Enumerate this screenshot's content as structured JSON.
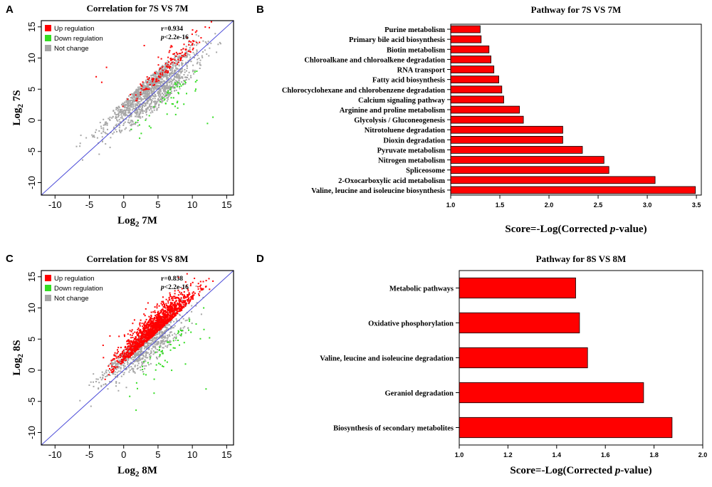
{
  "figure": {
    "panels": [
      "A",
      "B",
      "C",
      "D"
    ]
  },
  "chart_data": [
    {
      "id": "A",
      "type": "scatter",
      "title": "Correlation for 7S VS 7M",
      "xlabel_base": "Log",
      "xlabel_sub": "2",
      "xlabel_var": "7M",
      "ylabel_base": "Log",
      "ylabel_sub": "2",
      "ylabel_var": "7S",
      "xlim": [
        -12,
        16
      ],
      "ylim": [
        -12,
        16
      ],
      "xticks": [
        "-10",
        "-5",
        "0",
        "5",
        "10",
        "15"
      ],
      "xtick_values": [
        -10,
        -5,
        0,
        5,
        10,
        15
      ],
      "yticks": [
        "-10",
        "-5",
        "0",
        "5",
        "10",
        "15"
      ],
      "ytick_values": [
        -10,
        -5,
        0,
        5,
        10,
        15
      ],
      "r_text": "r=0.934",
      "p_text": "p<2.2e-16",
      "p_italic": "p",
      "p_rest": "<2.2e-16",
      "legend": [
        {
          "label": "Up regulation",
          "color": "#ff0000"
        },
        {
          "label": "Down regulation",
          "color": "#33dd22"
        },
        {
          "label": "Not change",
          "color": "#a6a6a6"
        }
      ],
      "diagonal": "y = x",
      "counts": {
        "not_change": 1400,
        "up": 140,
        "down": 55
      },
      "scatter_model": {
        "center": [
          4,
          5
        ],
        "sd_major": 4.3,
        "sd_minor": 1.5,
        "up_offset": [
          1.2,
          6
        ],
        "down_offset": [
          1.2,
          6
        ]
      },
      "seed": 7,
      "outliers": {
        "up": [
          [
            -4,
            7
          ],
          [
            -3.2,
            6.1
          ],
          [
            3,
            12
          ],
          [
            -2.5,
            8.5
          ]
        ],
        "down": [
          [
            13,
            0.5
          ],
          [
            12.2,
            -0.5
          ],
          [
            10.5,
            5
          ]
        ]
      }
    },
    {
      "id": "B",
      "type": "bar",
      "orientation": "horizontal",
      "title": "Pathway for 7S VS 7M",
      "xlabel_pre": "Score=-Log(Corrected ",
      "xlabel_italic": "p",
      "xlabel_post": "-value)",
      "xlim": [
        1.0,
        3.55
      ],
      "xticks": [
        "1.0",
        "1.5",
        "2.0",
        "2.5",
        "3.0",
        "3.5"
      ],
      "xtick_values": [
        1.0,
        1.5,
        2.0,
        2.5,
        3.0,
        3.5
      ],
      "bar_color": "#ff0000",
      "categories": [
        "Purine metabolism",
        "Primary bile acid biosynthesis",
        "Biotin metabolism",
        "Chloroalkane and chloroalkene degradation",
        "RNA transport",
        "Fatty acid biosynthesis",
        "Chlorocyclohexane and chlorobenzene degradation",
        "Calcium signaling pathway",
        "Arginine and proline metabolism",
        "Glycolysis / Gluconeogenesis",
        "Nitrotoluene degradation",
        "Dioxin degradation",
        "Pyruvate metabolism",
        "Nitrogen metabolism",
        "Spliceosome",
        "2-Oxocarboxylic acid metabolism",
        "Valine, leucine and isoleucine biosynthesis"
      ],
      "values": [
        1.3,
        1.31,
        1.39,
        1.41,
        1.44,
        1.49,
        1.52,
        1.54,
        1.7,
        1.74,
        2.14,
        2.14,
        2.34,
        2.56,
        2.61,
        3.08,
        3.49
      ]
    },
    {
      "id": "C",
      "type": "scatter",
      "title": "Correlation for 8S VS 8M",
      "xlabel_base": "Log",
      "xlabel_sub": "2",
      "xlabel_var": "8M",
      "ylabel_base": "Log",
      "ylabel_sub": "2",
      "ylabel_var": "8S",
      "xlim": [
        -12,
        16
      ],
      "ylim": [
        -12,
        16
      ],
      "xticks": [
        "-10",
        "-5",
        "0",
        "5",
        "10",
        "15"
      ],
      "xtick_values": [
        -10,
        -5,
        0,
        5,
        10,
        15
      ],
      "yticks": [
        "-10",
        "-5",
        "0",
        "5",
        "10",
        "15"
      ],
      "ytick_values": [
        -10,
        -5,
        0,
        5,
        10,
        15
      ],
      "r_text": "r=0.858",
      "p_text": "p<2.2e-16",
      "p_italic": "p",
      "p_rest": "<2.2e-16",
      "legend": [
        {
          "label": "Up regulation",
          "color": "#ff0000"
        },
        {
          "label": "Down regulation",
          "color": "#33dd22"
        },
        {
          "label": "Not change",
          "color": "#a6a6a6"
        }
      ],
      "diagonal": "y = x",
      "counts": {
        "not_change": 1100,
        "up": 1500,
        "down": 60
      },
      "scatter_model": {
        "center": [
          3,
          4.5
        ],
        "sd_major": 3.6,
        "sd_minor": 1.4,
        "up_offset": [
          0.6,
          5
        ],
        "down_offset": [
          0.6,
          5
        ]
      },
      "seed": 8,
      "outliers": {
        "up": [
          [
            -2,
            5.5
          ],
          [
            -3,
            4
          ],
          [
            11,
            12
          ],
          [
            12.5,
            13
          ]
        ],
        "down": [
          [
            12,
            -3
          ],
          [
            12.5,
            5.2
          ],
          [
            9,
            1
          ]
        ]
      }
    },
    {
      "id": "D",
      "type": "bar",
      "orientation": "horizontal",
      "title": "Pathway for 8S VS 8M",
      "xlabel_pre": "Score=-Log(Corrected ",
      "xlabel_italic": "p",
      "xlabel_post": "-value)",
      "xlim": [
        1.0,
        2.0
      ],
      "xticks": [
        "1.0",
        "1.2",
        "1.4",
        "1.6",
        "1.8",
        "2.0"
      ],
      "xtick_values": [
        1.0,
        1.2,
        1.4,
        1.6,
        1.8,
        2.0
      ],
      "bar_color": "#ff0000",
      "categories": [
        "Metabolic pathways",
        "Oxidative phosphorylation",
        "Valine, leucine and isoleucine degradation",
        "Geraniol degradation",
        "Biosynthesis of secondary metabolites"
      ],
      "values": [
        1.478,
        1.494,
        1.527,
        1.757,
        1.874
      ]
    }
  ]
}
